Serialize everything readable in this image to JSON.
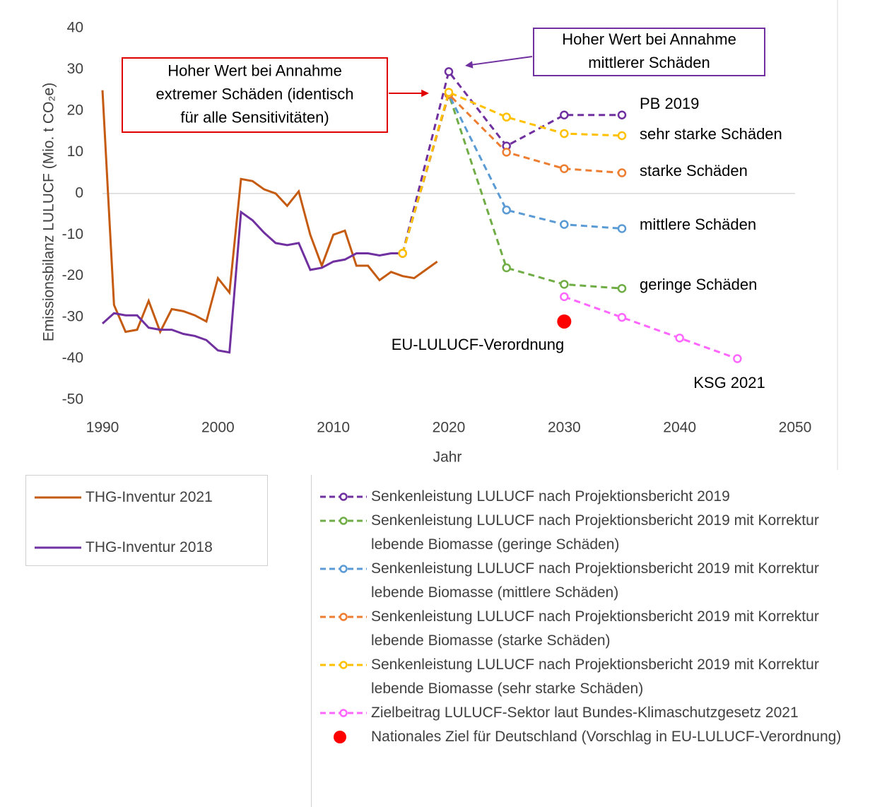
{
  "chart_data": {
    "type": "line",
    "x_label": "Jahr",
    "y_label": "Emissionsbilanz LULUCF (Mio. t CO₂e)",
    "xlim": [
      1990,
      2050
    ],
    "xticks": [
      1990,
      2000,
      2010,
      2020,
      2030,
      2040,
      2050
    ],
    "ylim": [
      -50,
      40
    ],
    "yticks": [
      -50,
      -40,
      -30,
      -20,
      -10,
      0,
      10,
      20,
      30,
      40
    ],
    "series": [
      {
        "name": "THG-Inventur 2021",
        "color": "#c55a11",
        "dashed": false,
        "markers": false,
        "legend": "left",
        "x": [
          1990,
          1991,
          1992,
          1993,
          1994,
          1995,
          1996,
          1997,
          1998,
          1999,
          2000,
          2001,
          2002,
          2003,
          2004,
          2005,
          2006,
          2007,
          2008,
          2009,
          2010,
          2011,
          2012,
          2013,
          2014,
          2015,
          2016,
          2017,
          2018,
          2019
        ],
        "values": [
          25,
          -27,
          -33.5,
          -33,
          -26,
          -33.5,
          -28,
          -28.5,
          -29.5,
          -31,
          -20.5,
          -24,
          3.5,
          3,
          1,
          0,
          -3,
          0.5,
          -10,
          -17.5,
          -10,
          -9,
          -17.5,
          -17.5,
          -21,
          -19,
          -20,
          -20.5,
          -18.5,
          -16.5
        ]
      },
      {
        "name": "THG-Inventur 2018",
        "color": "#7030a0",
        "dashed": false,
        "markers": false,
        "legend": "left",
        "x": [
          1990,
          1991,
          1992,
          1993,
          1994,
          1995,
          1996,
          1997,
          1998,
          1999,
          2000,
          2001,
          2002,
          2003,
          2004,
          2005,
          2006,
          2007,
          2008,
          2009,
          2010,
          2011,
          2012,
          2013,
          2014,
          2015,
          2016
        ],
        "values": [
          -31.5,
          -29,
          -29.5,
          -29.5,
          -32.5,
          -33,
          -33,
          -34,
          -34.5,
          -35.5,
          -38,
          -38.5,
          -4.5,
          -6.5,
          -9.5,
          -12,
          -12.5,
          -12,
          -18.5,
          -18,
          -16.5,
          -16,
          -14.5,
          -14.5,
          -15,
          -14.5,
          -14.5
        ]
      },
      {
        "name": "Senkenleistung LULUCF nach Projektionsbericht 2019",
        "color": "#7030a0",
        "dashed": true,
        "markers": true,
        "legend": "right",
        "x": [
          2016,
          2020,
          2025,
          2030,
          2035
        ],
        "values": [
          -14.5,
          29.5,
          11.5,
          19,
          19
        ]
      },
      {
        "name": "Senkenleistung LULUCF nach Projektionsbericht 2019 mit Korrektur lebende Biomasse (geringe Schäden)",
        "color": "#70ad47",
        "dashed": true,
        "markers": true,
        "legend": "right",
        "x": [
          2016,
          2020,
          2025,
          2030,
          2035
        ],
        "values": [
          -14.5,
          24,
          -18,
          -22,
          -23
        ]
      },
      {
        "name": "Senkenleistung LULUCF nach Projektionsbericht 2019 mit Korrektur lebende Biomasse (mittlere Schäden)",
        "color": "#5b9bd5",
        "dashed": true,
        "markers": true,
        "legend": "right",
        "x": [
          2016,
          2020,
          2025,
          2030,
          2035
        ],
        "values": [
          -14.5,
          24,
          -4,
          -7.5,
          -8.5
        ]
      },
      {
        "name": "Senkenleistung LULUCF nach Projektionsbericht 2019 mit Korrektur lebende Biomasse (starke Schäden)",
        "color": "#ed7d31",
        "dashed": true,
        "markers": true,
        "legend": "right",
        "x": [
          2016,
          2020,
          2025,
          2030,
          2035
        ],
        "values": [
          -14.5,
          24,
          10,
          6,
          5
        ]
      },
      {
        "name": "Senkenleistung LULUCF nach Projektionsbericht 2019 mit Korrektur lebende Biomasse (sehr starke Schäden)",
        "color": "#ffc000",
        "dashed": true,
        "markers": true,
        "legend": "right",
        "x": [
          2016,
          2020,
          2025,
          2030,
          2035
        ],
        "values": [
          -14.5,
          24.5,
          18.5,
          14.5,
          14
        ]
      },
      {
        "name": "Zielbeitrag LULUCF-Sektor laut Bundes-Klimaschutzgesetz 2021",
        "color": "#ff66ff",
        "dashed": true,
        "markers": true,
        "legend": "right",
        "x": [
          2030,
          2035,
          2040,
          2045
        ],
        "values": [
          -25,
          -30,
          -35,
          -40
        ]
      },
      {
        "name": "Nationales Ziel für Deutschland (Vorschlag in EU-LULUCF-Verordnung)",
        "color": "#ff0000",
        "dot_only": true,
        "legend": "right",
        "x": [
          2030
        ],
        "values": [
          -31
        ]
      }
    ],
    "labels": [
      "PB 2019",
      "sehr starke Schäden",
      "starke Schäden",
      "mittlere Schäden",
      "geringe Schäden",
      "EU-LULUCF-Verordnung",
      "KSG 2021"
    ],
    "callouts": [
      {
        "lines": [
          "Hoher Wert bei Annahme",
          "extremer Schäden (identisch",
          "für alle Sensitivitäten)"
        ],
        "color": "#e00000"
      },
      {
        "lines": [
          "Hoher Wert bei Annahme",
          "mittlerer Schäden"
        ],
        "color": "#7030a0"
      }
    ]
  }
}
